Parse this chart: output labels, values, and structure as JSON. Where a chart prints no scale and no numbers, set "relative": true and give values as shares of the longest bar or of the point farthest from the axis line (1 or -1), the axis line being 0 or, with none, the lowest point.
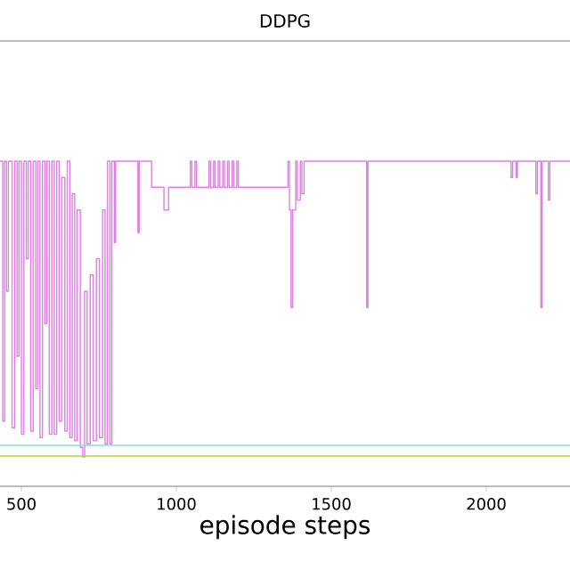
{
  "chart_data": {
    "type": "step",
    "title": "DDPG",
    "xlabel": "episode steps",
    "relative": true,
    "xlim": [
      431,
      2270
    ],
    "xticks": [
      500,
      1000,
      1500,
      2000
    ],
    "grid": false,
    "series": [
      {
        "color": "#e37de8",
        "x": [
          431,
          440,
          446,
          452,
          458,
          470,
          478,
          486,
          492,
          500,
          508,
          516,
          522,
          530,
          538,
          546,
          552,
          560,
          568,
          576,
          582,
          590,
          598,
          606,
          614,
          622,
          630,
          640,
          648,
          656,
          664,
          672,
          680,
          690,
          698,
          704,
          712,
          722,
          732,
          742,
          752,
          762,
          770,
          778,
          786,
          792,
          800,
          804,
          876,
          880,
          920,
          960,
          975,
          1045,
          1050,
          1060,
          1065,
          1105,
          1110,
          1120,
          1125,
          1135,
          1140,
          1150,
          1155,
          1165,
          1170,
          1180,
          1185,
          1195,
          1200,
          1360,
          1365,
          1370,
          1375,
          1385,
          1390,
          1400,
          1405,
          1412,
          1614,
          1618,
          2080,
          2085,
          2096,
          2100,
          2160,
          2165,
          2176,
          2180,
          2200,
          2205,
          2270
        ],
        "values": [
          1,
          0.2,
          1,
          0.6,
          1,
          0.18,
          1,
          0.4,
          1,
          0.16,
          1,
          0.7,
          1,
          0.17,
          1,
          0.3,
          1,
          0.15,
          1,
          0.5,
          1,
          0.16,
          1,
          0.16,
          1,
          0.2,
          0.95,
          0.17,
          1,
          0.15,
          0.9,
          0.14,
          0.85,
          0.12,
          0.09,
          0.6,
          0.13,
          0.65,
          0.14,
          0.7,
          0.15,
          0.85,
          0.13,
          1,
          0.13,
          1,
          0.75,
          1,
          0.78,
          1,
          0.92,
          0.85,
          0.92,
          1,
          0.92,
          1,
          0.92,
          1,
          0.92,
          1,
          0.92,
          1,
          0.92,
          1,
          0.92,
          1,
          0.92,
          1,
          0.92,
          1,
          0.92,
          1,
          0.85,
          0.55,
          0.85,
          1,
          0.88,
          1,
          0.9,
          1,
          0.55,
          1,
          0.95,
          1,
          0.95,
          1,
          0.9,
          1,
          0.55,
          1,
          0.88,
          1,
          1
        ]
      },
      {
        "color": "#80e0e8",
        "x": [
          431,
          2270
        ],
        "values": [
          0.126,
          0.126
        ]
      },
      {
        "color": "#b5d33a",
        "x": [
          431,
          2270
        ],
        "values": [
          0.093,
          0.093
        ]
      }
    ]
  }
}
